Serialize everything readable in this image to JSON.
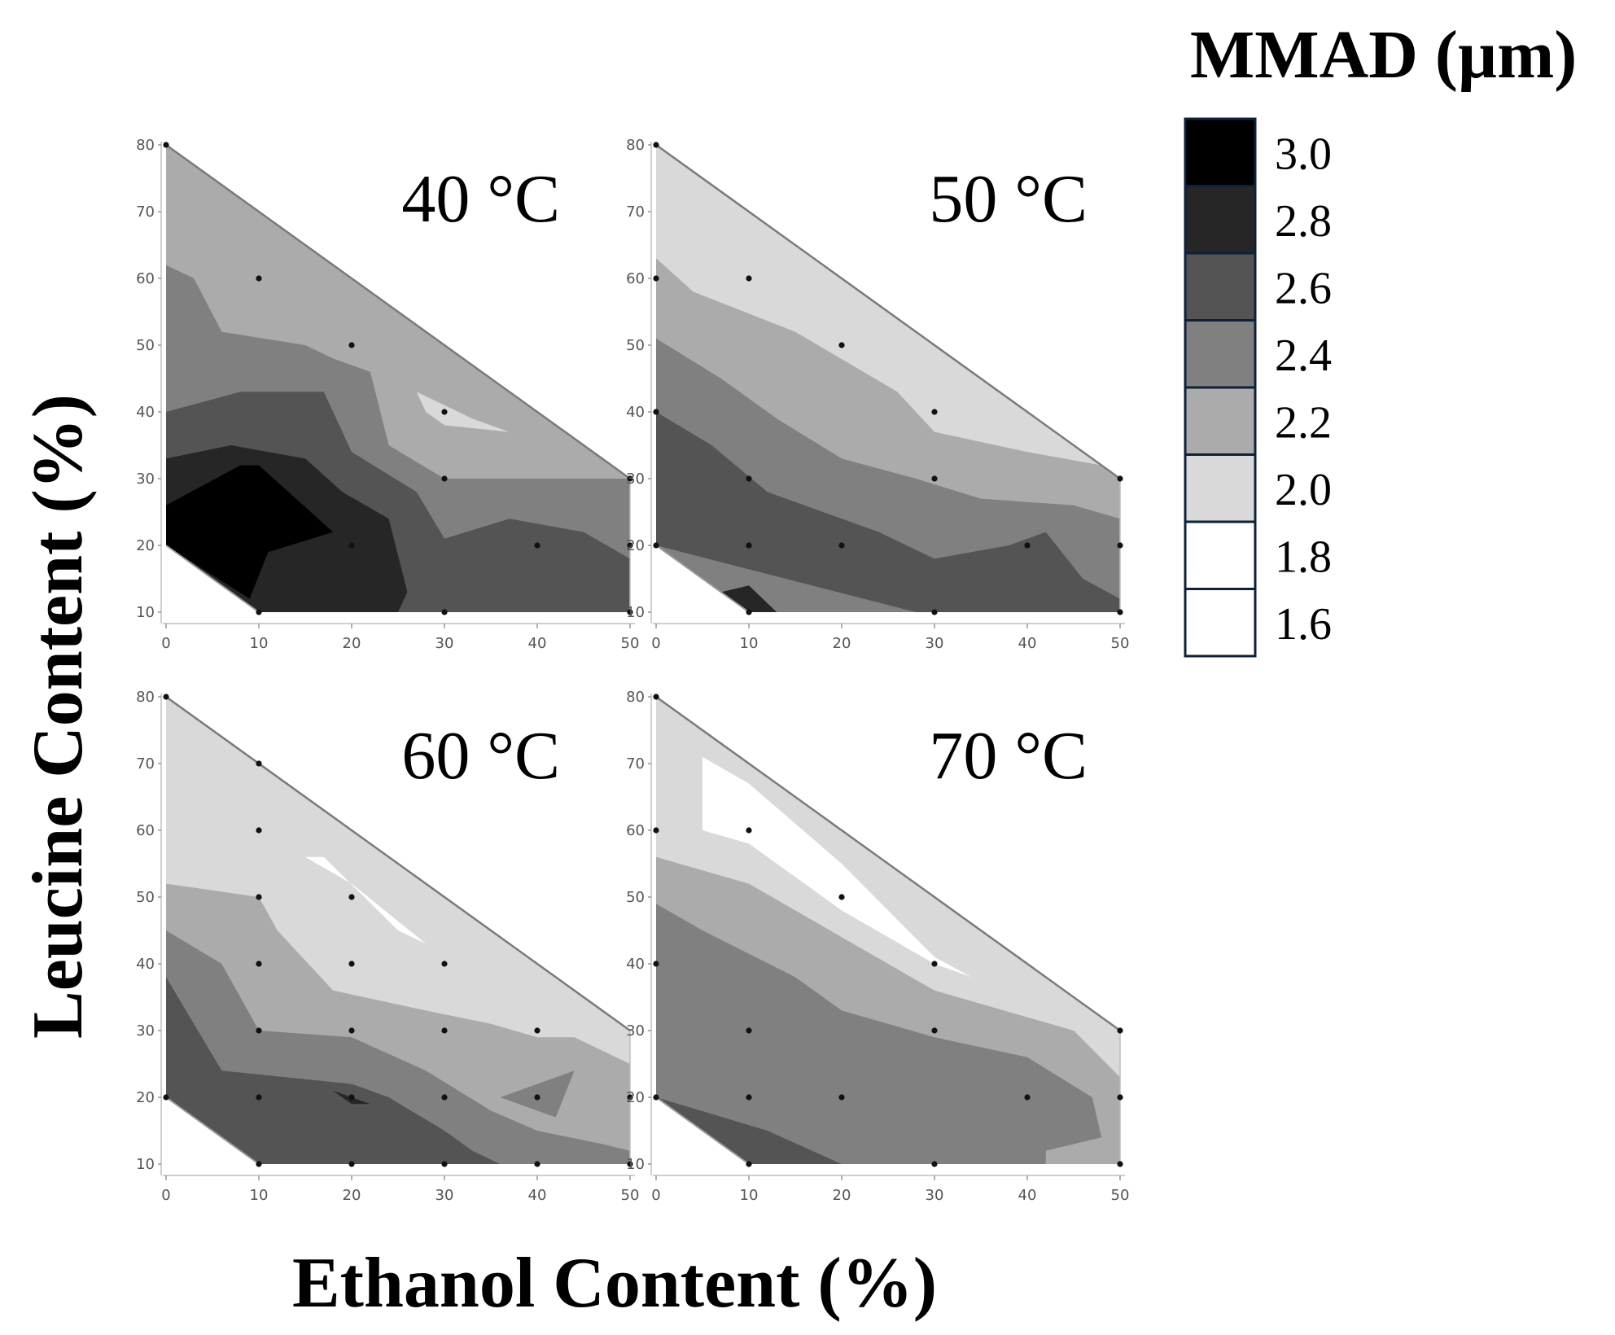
{
  "figure": {
    "xlabel": "Ethanol Content (%)",
    "ylabel": "Leucine Content (%)"
  },
  "legend": {
    "title": "MMAD (µm)",
    "levels": [
      {
        "label": "3.0",
        "color": "#000000"
      },
      {
        "label": "2.8",
        "color": "#262626"
      },
      {
        "label": "2.6",
        "color": "#545454"
      },
      {
        "label": "2.4",
        "color": "#808080"
      },
      {
        "label": "2.2",
        "color": "#ababab"
      },
      {
        "label": "2.0",
        "color": "#d9d9d9"
      },
      {
        "label": "1.8",
        "color": "#ffffff"
      },
      {
        "label": "1.6",
        "color": "#ffffff"
      }
    ]
  },
  "chart_data": [
    {
      "type": "heatmap",
      "title": "40 °C",
      "x_ticks": [
        0,
        10,
        20,
        30,
        40,
        50
      ],
      "y_ticks": [
        10,
        20,
        30,
        40,
        50,
        60,
        70,
        80
      ],
      "xlim": [
        0,
        50
      ],
      "ylim": [
        10,
        80
      ],
      "points": [
        [
          0,
          80
        ],
        [
          10,
          60
        ],
        [
          20,
          50
        ],
        [
          30,
          40
        ],
        [
          30,
          30
        ],
        [
          50,
          30
        ],
        [
          10,
          10
        ],
        [
          20,
          20
        ],
        [
          40,
          20
        ],
        [
          50,
          20
        ],
        [
          30,
          10
        ],
        [
          50,
          10
        ]
      ],
      "regions": [
        {
          "level": "2.2",
          "poly": [
            [
              0,
              80
            ],
            [
              50,
              30
            ],
            [
              50,
              10
            ],
            [
              10,
              10
            ],
            [
              0,
              20
            ]
          ]
        },
        {
          "level": "2.4",
          "poly": [
            [
              0,
              62
            ],
            [
              3,
              60
            ],
            [
              6,
              52
            ],
            [
              15,
              50
            ],
            [
              18,
              48
            ],
            [
              22,
              46
            ],
            [
              24,
              35
            ],
            [
              30,
              30
            ],
            [
              40,
              30
            ],
            [
              50,
              30
            ],
            [
              50,
              10
            ],
            [
              10,
              10
            ],
            [
              0,
              20
            ]
          ]
        },
        {
          "level": "2.6",
          "poly": [
            [
              0,
              40
            ],
            [
              8,
              43
            ],
            [
              17,
              43
            ],
            [
              20,
              34
            ],
            [
              27,
              28
            ],
            [
              30,
              21
            ],
            [
              37,
              24
            ],
            [
              45,
              22
            ],
            [
              50,
              18
            ],
            [
              50,
              10
            ],
            [
              10,
              10
            ],
            [
              0,
              20
            ]
          ]
        },
        {
          "level": "2.8",
          "poly": [
            [
              0,
              33
            ],
            [
              7,
              35
            ],
            [
              15,
              33
            ],
            [
              19,
              28
            ],
            [
              24,
              24
            ],
            [
              26,
              13
            ],
            [
              25,
              10
            ],
            [
              10,
              10
            ],
            [
              0,
              20
            ]
          ]
        },
        {
          "level": "3.0",
          "poly": [
            [
              0,
              26
            ],
            [
              8,
              32
            ],
            [
              10,
              32
            ],
            [
              18,
              22
            ],
            [
              11,
              19
            ],
            [
              9,
              12
            ],
            [
              0,
              20
            ]
          ]
        },
        {
          "level": "2.0",
          "poly": [
            [
              27,
              43
            ],
            [
              33,
              39
            ],
            [
              37,
              37
            ],
            [
              30,
              38
            ],
            [
              28,
              40
            ]
          ]
        }
      ]
    },
    {
      "type": "heatmap",
      "title": "50 °C",
      "x_ticks": [
        0,
        10,
        20,
        30,
        40,
        50
      ],
      "y_ticks": [
        10,
        20,
        30,
        40,
        50,
        60,
        70,
        80
      ],
      "xlim": [
        0,
        50
      ],
      "ylim": [
        10,
        80
      ],
      "points": [
        [
          0,
          80
        ],
        [
          0,
          60
        ],
        [
          10,
          60
        ],
        [
          20,
          50
        ],
        [
          30,
          40
        ],
        [
          0,
          40
        ],
        [
          10,
          30
        ],
        [
          30,
          30
        ],
        [
          50,
          30
        ],
        [
          10,
          20
        ],
        [
          20,
          20
        ],
        [
          40,
          20
        ],
        [
          50,
          20
        ],
        [
          0,
          20
        ],
        [
          10,
          10
        ],
        [
          30,
          10
        ],
        [
          50,
          10
        ]
      ],
      "regions": [
        {
          "level": "2.0",
          "poly": [
            [
              0,
              80
            ],
            [
              50,
              30
            ],
            [
              50,
              10
            ],
            [
              10,
              10
            ],
            [
              0,
              20
            ]
          ]
        },
        {
          "level": "2.2",
          "poly": [
            [
              0,
              63
            ],
            [
              4,
              58
            ],
            [
              15,
              52
            ],
            [
              26,
              43
            ],
            [
              30,
              37
            ],
            [
              40,
              34
            ],
            [
              48,
              32
            ],
            [
              50,
              30
            ],
            [
              50,
              10
            ],
            [
              10,
              10
            ],
            [
              0,
              20
            ]
          ]
        },
        {
          "level": "2.4",
          "poly": [
            [
              0,
              51
            ],
            [
              7,
              45
            ],
            [
              13,
              39
            ],
            [
              20,
              33
            ],
            [
              28,
              30
            ],
            [
              35,
              27
            ],
            [
              45,
              26
            ],
            [
              50,
              24
            ],
            [
              50,
              10
            ],
            [
              10,
              10
            ],
            [
              0,
              20
            ]
          ]
        },
        {
          "level": "2.6",
          "poly": [
            [
              0,
              40
            ],
            [
              6,
              35
            ],
            [
              12,
              28
            ],
            [
              24,
              22
            ],
            [
              30,
              18
            ],
            [
              38,
              20
            ],
            [
              42,
              22
            ],
            [
              46,
              15
            ],
            [
              50,
              12
            ],
            [
              50,
              10
            ],
            [
              28,
              10
            ],
            [
              0,
              20
            ]
          ]
        },
        {
          "level": "2.8",
          "poly": [
            [
              7,
              13
            ],
            [
              10,
              14
            ],
            [
              13,
              10
            ],
            [
              10,
              10
            ]
          ]
        }
      ]
    },
    {
      "type": "heatmap",
      "title": "60 °C",
      "x_ticks": [
        0,
        10,
        20,
        30,
        40,
        50
      ],
      "y_ticks": [
        10,
        20,
        30,
        40,
        50,
        60,
        70,
        80
      ],
      "xlim": [
        0,
        50
      ],
      "ylim": [
        10,
        80
      ],
      "points": [
        [
          0,
          80
        ],
        [
          10,
          70
        ],
        [
          10,
          60
        ],
        [
          20,
          50
        ],
        [
          10,
          50
        ],
        [
          10,
          40
        ],
        [
          20,
          40
        ],
        [
          30,
          40
        ],
        [
          10,
          30
        ],
        [
          20,
          30
        ],
        [
          30,
          30
        ],
        [
          40,
          30
        ],
        [
          10,
          20
        ],
        [
          20,
          20
        ],
        [
          30,
          20
        ],
        [
          40,
          20
        ],
        [
          50,
          20
        ],
        [
          0,
          20
        ],
        [
          10,
          10
        ],
        [
          20,
          10
        ],
        [
          30,
          10
        ],
        [
          40,
          10
        ],
        [
          50,
          10
        ]
      ],
      "regions": [
        {
          "level": "2.0",
          "poly": [
            [
              0,
              80
            ],
            [
              50,
              30
            ],
            [
              50,
              10
            ],
            [
              10,
              10
            ],
            [
              0,
              20
            ]
          ]
        },
        {
          "level": "2.2",
          "poly": [
            [
              0,
              52
            ],
            [
              10,
              50
            ],
            [
              12,
              45
            ],
            [
              18,
              36
            ],
            [
              28,
              33
            ],
            [
              35,
              31
            ],
            [
              40,
              29
            ],
            [
              44,
              29
            ],
            [
              50,
              25
            ],
            [
              50,
              10
            ],
            [
              10,
              10
            ],
            [
              0,
              20
            ]
          ]
        },
        {
          "level": "2.4",
          "poly": [
            [
              0,
              45
            ],
            [
              6,
              40
            ],
            [
              10,
              30
            ],
            [
              20,
              29
            ],
            [
              28,
              24
            ],
            [
              35,
              18
            ],
            [
              40,
              15
            ],
            [
              47,
              13
            ],
            [
              50,
              12
            ],
            [
              50,
              10
            ],
            [
              10,
              10
            ],
            [
              0,
              20
            ]
          ]
        },
        {
          "level": "2.6",
          "poly": [
            [
              0,
              38
            ],
            [
              6,
              24
            ],
            [
              20,
              22
            ],
            [
              24,
              20
            ],
            [
              30,
              15
            ],
            [
              33,
              12
            ],
            [
              36,
              10
            ],
            [
              10,
              10
            ],
            [
              0,
              20
            ]
          ]
        },
        {
          "level": "2.8",
          "poly": [
            [
              18,
              21
            ],
            [
              22,
              19
            ],
            [
              20,
              19
            ]
          ]
        },
        {
          "level": "2.4",
          "poly": [
            [
              36,
              20
            ],
            [
              42,
              17
            ],
            [
              44,
              24
            ]
          ]
        },
        {
          "level": "1.8",
          "poly": [
            [
              15,
              56
            ],
            [
              20,
              52
            ],
            [
              28,
              43
            ],
            [
              25,
              45
            ],
            [
              17,
              56
            ]
          ]
        }
      ]
    },
    {
      "type": "heatmap",
      "title": "70 °C",
      "x_ticks": [
        0,
        10,
        20,
        30,
        40,
        50
      ],
      "y_ticks": [
        10,
        20,
        30,
        40,
        50,
        60,
        70,
        80
      ],
      "xlim": [
        0,
        50
      ],
      "ylim": [
        10,
        80
      ],
      "points": [
        [
          0,
          80
        ],
        [
          0,
          60
        ],
        [
          10,
          60
        ],
        [
          20,
          50
        ],
        [
          30,
          40
        ],
        [
          0,
          40
        ],
        [
          10,
          30
        ],
        [
          30,
          30
        ],
        [
          50,
          30
        ],
        [
          10,
          20
        ],
        [
          20,
          20
        ],
        [
          40,
          20
        ],
        [
          50,
          20
        ],
        [
          0,
          20
        ],
        [
          10,
          10
        ],
        [
          30,
          10
        ],
        [
          50,
          10
        ]
      ],
      "regions": [
        {
          "level": "2.0",
          "poly": [
            [
              0,
              80
            ],
            [
              50,
              30
            ],
            [
              50,
              10
            ],
            [
              10,
              10
            ],
            [
              0,
              20
            ]
          ]
        },
        {
          "level": "2.2",
          "poly": [
            [
              0,
              56
            ],
            [
              10,
              52
            ],
            [
              20,
              44
            ],
            [
              30,
              36
            ],
            [
              40,
              32
            ],
            [
              45,
              30
            ],
            [
              50,
              23
            ],
            [
              50,
              10
            ],
            [
              10,
              10
            ],
            [
              0,
              20
            ]
          ]
        },
        {
          "level": "2.4",
          "poly": [
            [
              0,
              49
            ],
            [
              5,
              45
            ],
            [
              15,
              38
            ],
            [
              20,
              33
            ],
            [
              30,
              29
            ],
            [
              40,
              26
            ],
            [
              47,
              20
            ],
            [
              48,
              14
            ],
            [
              42,
              12
            ],
            [
              42,
              10
            ],
            [
              10,
              10
            ],
            [
              0,
              20
            ]
          ]
        },
        {
          "level": "2.6",
          "poly": [
            [
              0,
              20
            ],
            [
              12,
              15
            ],
            [
              20,
              10
            ],
            [
              10,
              10
            ]
          ]
        },
        {
          "level": "1.8",
          "poly": [
            [
              5,
              71
            ],
            [
              10,
              67
            ],
            [
              20,
              55
            ],
            [
              30,
              41
            ],
            [
              34,
              38
            ],
            [
              30,
              40
            ],
            [
              20,
              48
            ],
            [
              10,
              58
            ],
            [
              5,
              60
            ]
          ]
        }
      ]
    }
  ]
}
